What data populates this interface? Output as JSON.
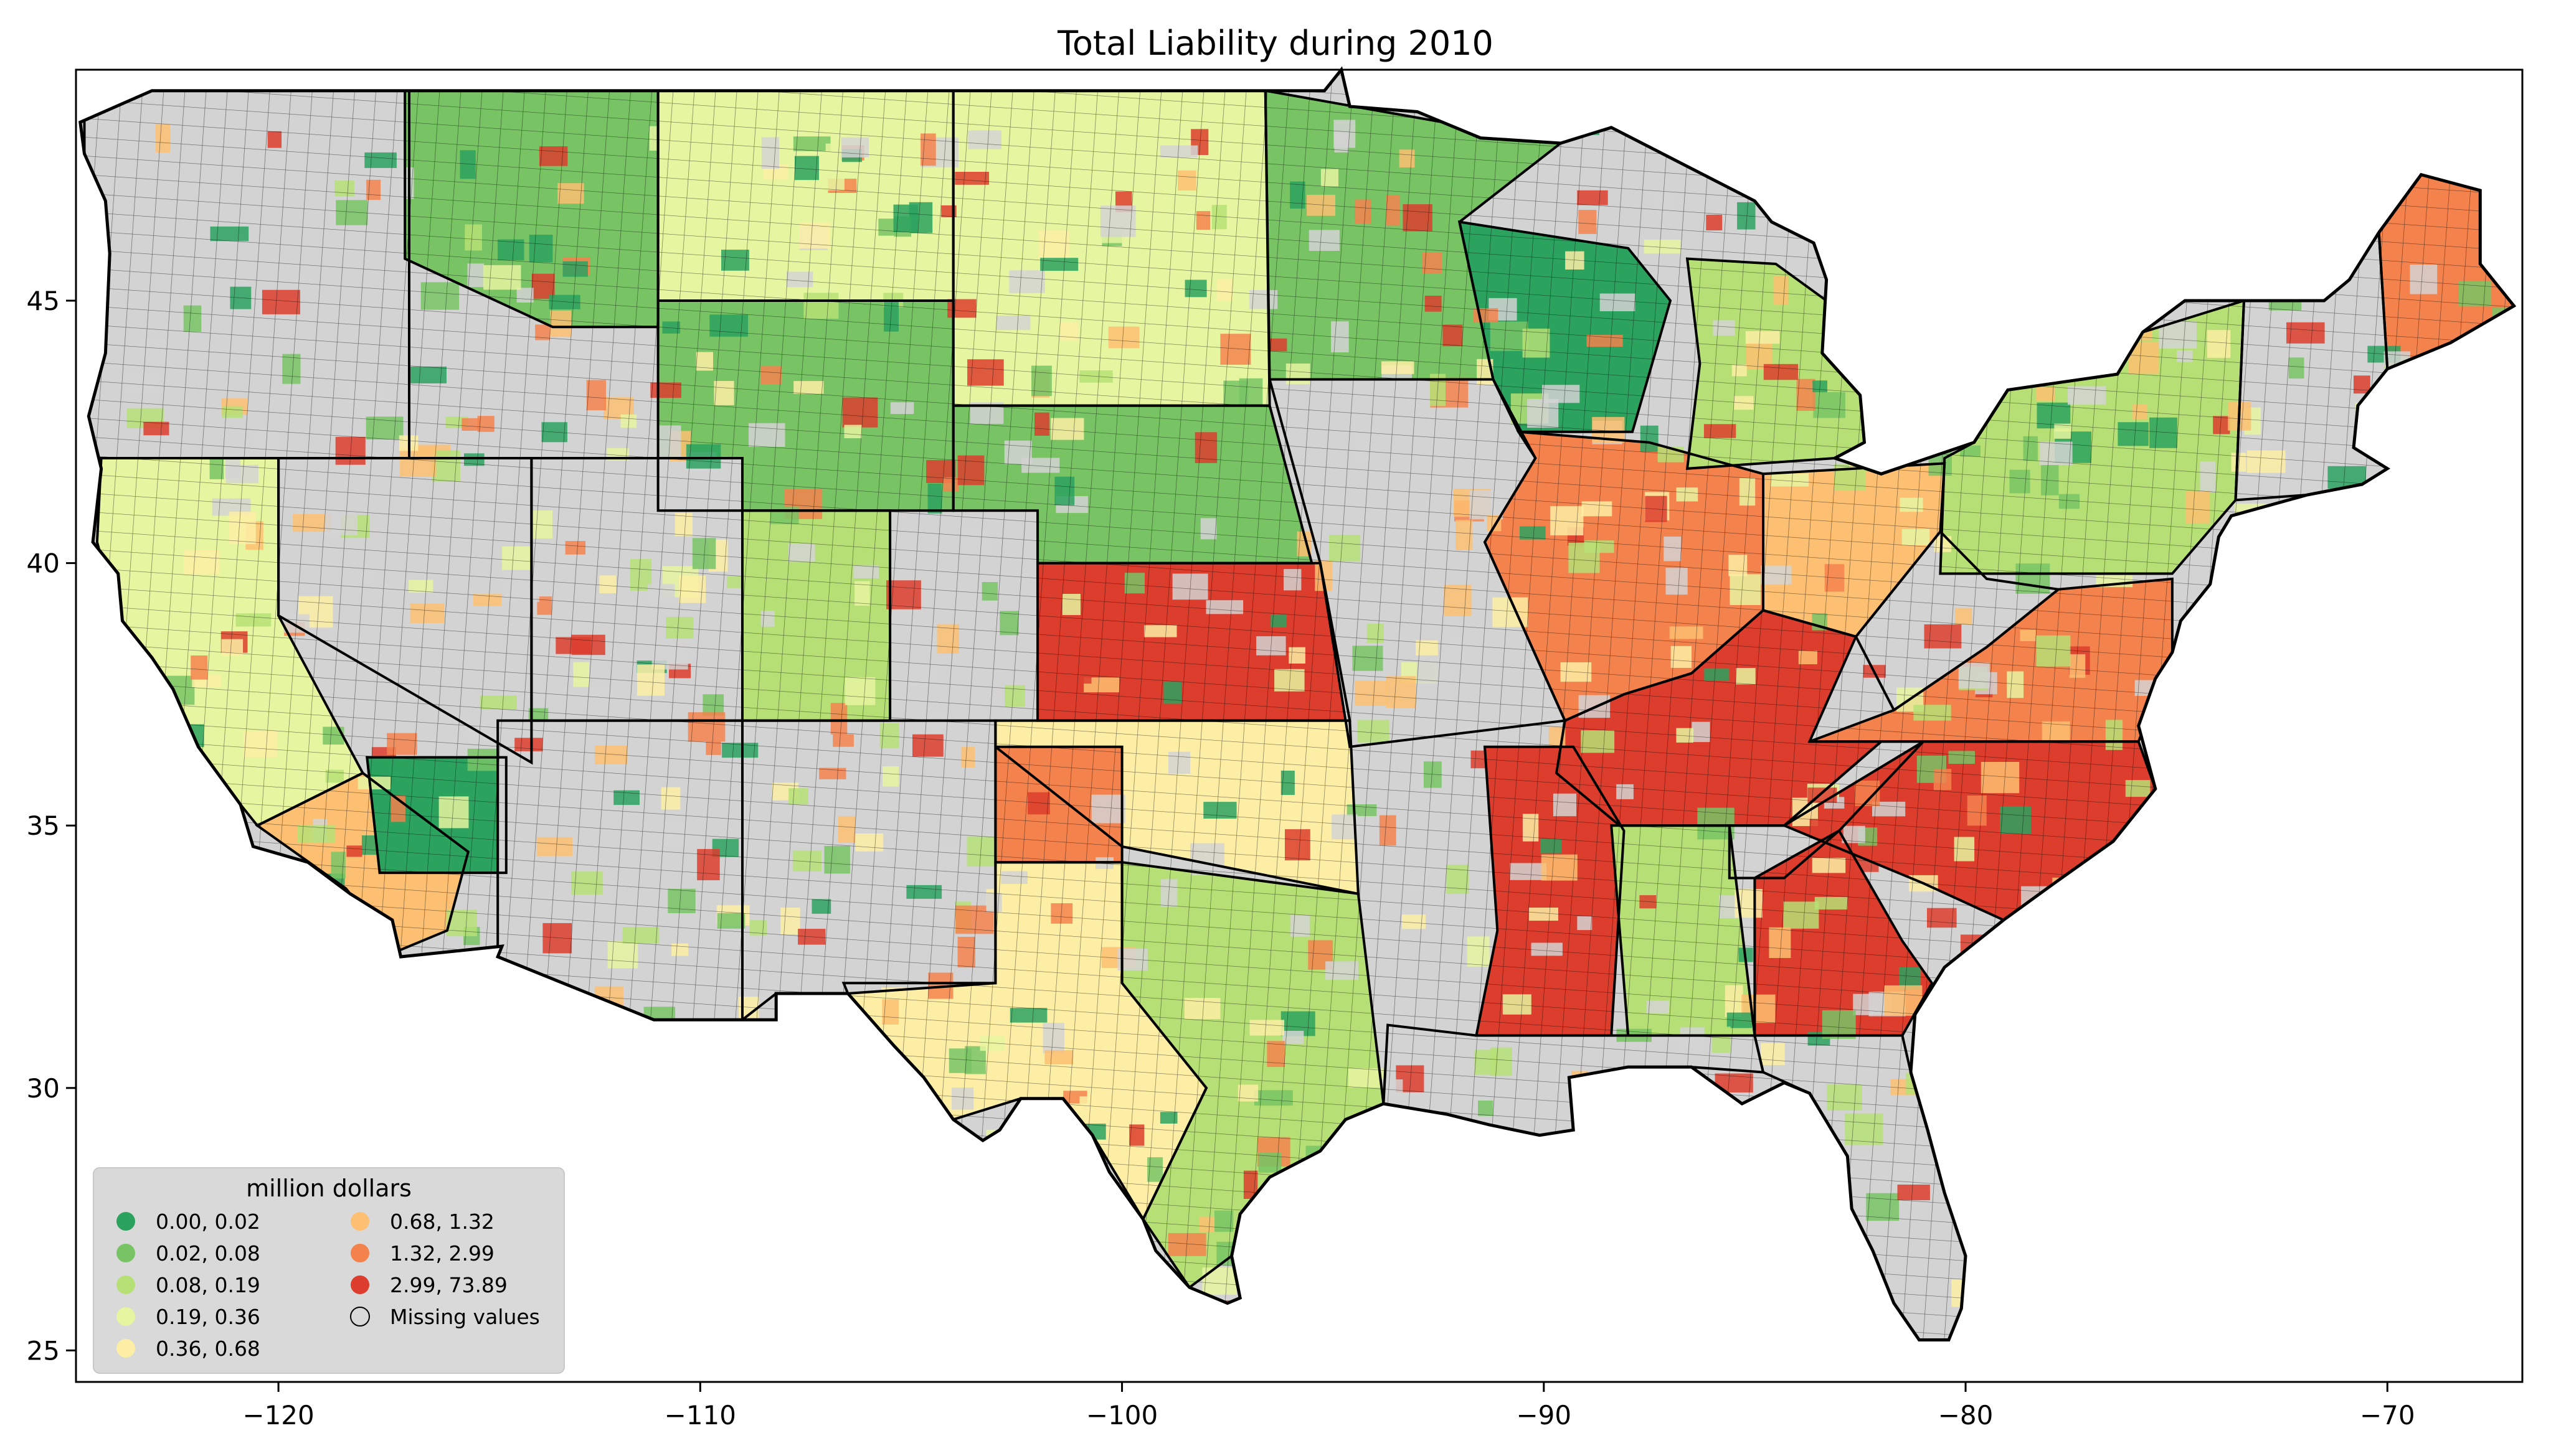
{
  "title": "Total Liability during 2010",
  "axes": {
    "x_ticks": [
      {
        "value": -120,
        "label": "−120"
      },
      {
        "value": -110,
        "label": "−110"
      },
      {
        "value": -100,
        "label": "−100"
      },
      {
        "value": -90,
        "label": "−90"
      },
      {
        "value": -80,
        "label": "−80"
      },
      {
        "value": -70,
        "label": "−70"
      }
    ],
    "y_ticks": [
      {
        "value": 45,
        "label": "45"
      },
      {
        "value": 40,
        "label": "40"
      },
      {
        "value": 35,
        "label": "35"
      },
      {
        "value": 30,
        "label": "30"
      },
      {
        "value": 25,
        "label": "25"
      }
    ],
    "xlim": [
      -124.8,
      -66.8
    ],
    "ylim": [
      24.4,
      49.4
    ]
  },
  "legend": {
    "title": "million dollars",
    "placement": "lower-left",
    "items": [
      {
        "label": "0.00,  0.02",
        "color": "#2ca25f"
      },
      {
        "label": "0.02,  0.08",
        "color": "#78c465"
      },
      {
        "label": "0.08,  0.19",
        "color": "#b6e075"
      },
      {
        "label": "0.19,  0.36",
        "color": "#e6f5a0"
      },
      {
        "label": "0.36,  0.68",
        "color": "#fdeea5"
      },
      {
        "label": "0.68,  1.32",
        "color": "#fdbf71"
      },
      {
        "label": "1.32,  2.99",
        "color": "#f4824d"
      },
      {
        "label": "2.99, 73.89",
        "color": "#dc3d2d"
      },
      {
        "label": "Missing values",
        "color": "#d3d3d3"
      }
    ]
  },
  "colors": {
    "missing": "#d3d3d3",
    "county_border": "#000000",
    "frame": "#000000"
  },
  "regions": [
    {
      "id": "pacific-northwest",
      "bin": "missing"
    },
    {
      "id": "california-north",
      "bin": "0.19,  0.36"
    },
    {
      "id": "california-south",
      "bin": "0.68,  1.32"
    },
    {
      "id": "southern-california-east",
      "bin": "0.00,  0.02"
    },
    {
      "id": "nevada",
      "bin": "missing"
    },
    {
      "id": "idaho-montana-west",
      "bin": "0.02,  0.08"
    },
    {
      "id": "montana-east",
      "bin": "0.19,  0.36"
    },
    {
      "id": "wyoming",
      "bin": "0.02,  0.08"
    },
    {
      "id": "utah",
      "bin": "missing"
    },
    {
      "id": "colorado-west",
      "bin": "0.08,  0.19"
    },
    {
      "id": "arizona",
      "bin": "missing"
    },
    {
      "id": "new-mexico",
      "bin": "missing"
    },
    {
      "id": "dakotas",
      "bin": "0.19,  0.36"
    },
    {
      "id": "nebraska",
      "bin": "0.02,  0.08"
    },
    {
      "id": "kansas",
      "bin": "2.99, 73.89"
    },
    {
      "id": "oklahoma",
      "bin": "0.36,  0.68"
    },
    {
      "id": "texas-west",
      "bin": "0.36,  0.68"
    },
    {
      "id": "texas-east",
      "bin": "0.08,  0.19"
    },
    {
      "id": "texas-panhandle",
      "bin": "1.32,  2.99"
    },
    {
      "id": "minnesota",
      "bin": "0.02,  0.08"
    },
    {
      "id": "iowa-missouri",
      "bin": "missing"
    },
    {
      "id": "illinois-indiana",
      "bin": "1.32,  2.99"
    },
    {
      "id": "ohio",
      "bin": "0.68,  1.32"
    },
    {
      "id": "michigan",
      "bin": "0.08,  0.19"
    },
    {
      "id": "wisconsin",
      "bin": "0.00,  0.02"
    },
    {
      "id": "mississippi-valley",
      "bin": "2.99, 73.89"
    },
    {
      "id": "kentucky-tennessee",
      "bin": "2.99, 73.89"
    },
    {
      "id": "west-virginia",
      "bin": "missing"
    },
    {
      "id": "appalachia",
      "bin": "missing"
    },
    {
      "id": "carolinas",
      "bin": "2.99, 73.89"
    },
    {
      "id": "virginia-maryland",
      "bin": "1.32,  2.99"
    },
    {
      "id": "georgia-south",
      "bin": "2.99, 73.89"
    },
    {
      "id": "alabama",
      "bin": "0.08,  0.19"
    },
    {
      "id": "gulf-coast",
      "bin": "missing"
    },
    {
      "id": "florida",
      "bin": "missing"
    },
    {
      "id": "new-york-pennsylvania",
      "bin": "0.08,  0.19"
    },
    {
      "id": "new-england",
      "bin": "missing"
    },
    {
      "id": "maine-north",
      "bin": "1.32,  2.99"
    }
  ]
}
